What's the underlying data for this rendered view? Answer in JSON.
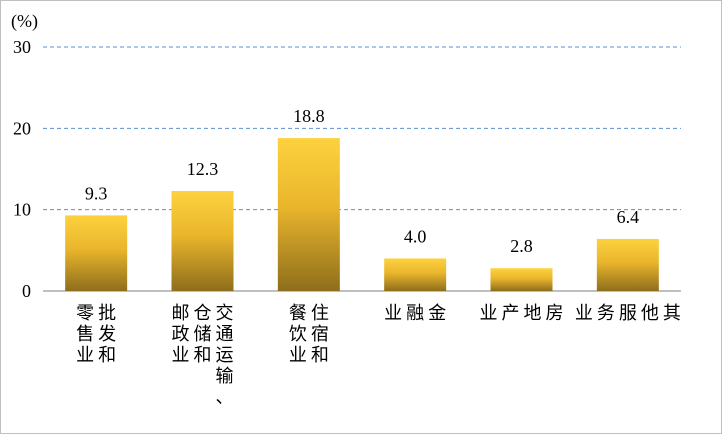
{
  "chart_data": {
    "type": "bar",
    "unit_label": "(%)",
    "categories": [
      [
        "批发和",
        "零售业"
      ],
      [
        "交通运输、",
        "仓储和",
        "邮政业"
      ],
      [
        "住宿和",
        "餐饮业"
      ],
      [
        "金",
        "融",
        "业"
      ],
      [
        "房",
        "地",
        "产",
        "业"
      ],
      [
        "其",
        "他",
        "服",
        "务",
        "业"
      ]
    ],
    "values": [
      9.3,
      12.3,
      18.8,
      4.0,
      2.8,
      6.4
    ],
    "value_labels": [
      "9.3",
      "12.3",
      "18.8",
      "4.0",
      "2.8",
      "6.4"
    ],
    "ylim": [
      0,
      30
    ],
    "yticks": [
      "0",
      "10",
      "20",
      "30"
    ],
    "grid": true,
    "grid_style": "dashed",
    "colors": {
      "bar_top": "#FDD23E",
      "bar_mid": "#E9B52C",
      "bar_bottom": "#8E6E1C",
      "grid": "#5B8FCF",
      "axis": "#808080"
    }
  }
}
